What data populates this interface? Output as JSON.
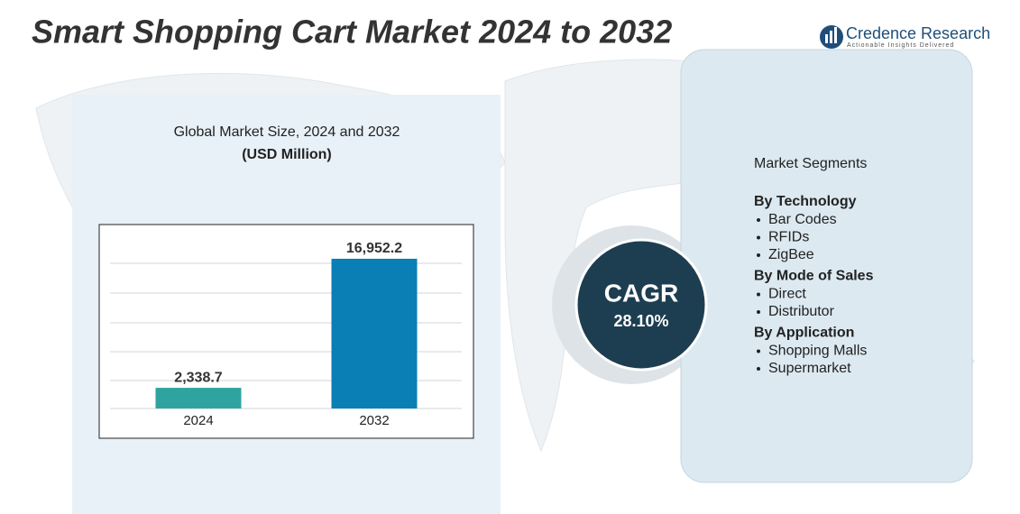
{
  "header": {
    "title": "Smart Shopping Cart Market 2024 to 2032",
    "brand": "Credence Research",
    "tagline": "Actionable Insights Delivered"
  },
  "chart_data": {
    "type": "bar",
    "title": "Global Market Size, 2024 and 2032",
    "subtitle": "(USD Million)",
    "categories": [
      "2024",
      "2032"
    ],
    "values": [
      2338.7,
      16952.2
    ],
    "value_labels": [
      "2,338.7",
      "16,952.2"
    ],
    "colors": [
      "#2fa39f",
      "#0a7fb5"
    ],
    "ylim": [
      0,
      19500
    ]
  },
  "cagr": {
    "label": "CAGR",
    "value": "28.10%"
  },
  "segments": {
    "title": "Market Segments",
    "groups": [
      {
        "name": "By Technology",
        "items": [
          "Bar Codes",
          "RFIDs",
          "ZigBee"
        ]
      },
      {
        "name": "By Mode of Sales",
        "items": [
          "Direct",
          "Distributor"
        ]
      },
      {
        "name": "By Application",
        "items": [
          "Shopping Malls",
          "Supermarket"
        ]
      }
    ]
  }
}
